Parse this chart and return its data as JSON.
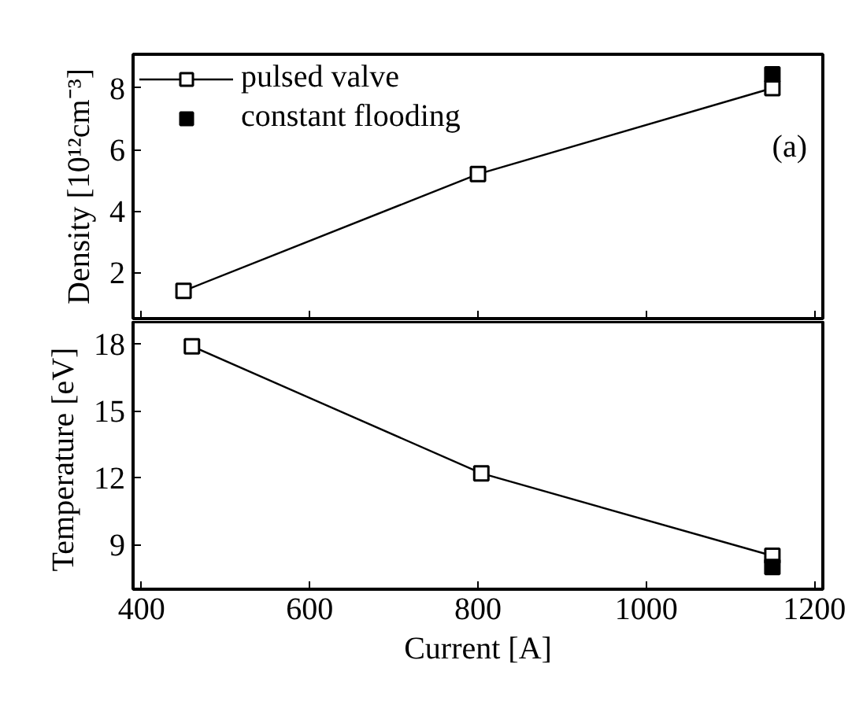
{
  "chart_data": [
    {
      "type": "line",
      "ylabel": "Density [10¹²cm⁻³]",
      "annotations": [
        "(a)"
      ],
      "xlim": [
        390,
        1210
      ],
      "xticks": [
        400,
        600,
        800,
        1000,
        1200
      ],
      "ylim": [
        0.5,
        9.1
      ],
      "yticks": [
        2,
        4,
        6,
        8
      ],
      "tick_labels": "y",
      "legend": "top left",
      "marker": "square",
      "grid": false,
      "series": [
        {
          "name": "pulsed valve",
          "color": "#000000",
          "x": [
            450,
            800,
            1150
          ],
          "values": [
            1.4,
            5.2,
            8.0
          ]
        },
        {
          "name": "constant flooding",
          "type": "scatter",
          "color": "#000000",
          "x": [
            1150
          ],
          "values": [
            8.45
          ]
        }
      ]
    },
    {
      "type": "line",
      "xlabel": "Current [A]",
      "ylabel": "Temperature  [eV]",
      "xlim": [
        390,
        1210
      ],
      "xticks": [
        400,
        600,
        800,
        1000,
        1200
      ],
      "ylim": [
        7,
        19
      ],
      "yticks": [
        9,
        12,
        15,
        18
      ],
      "marker": "square",
      "grid": false,
      "series": [
        {
          "color": "#000000",
          "x": [
            460,
            804,
            1150
          ],
          "values": [
            17.9,
            12.2,
            8.5
          ]
        },
        {
          "type": "scatter",
          "color": "#000000",
          "x": [
            1150
          ],
          "values": [
            8.0
          ]
        }
      ]
    }
  ]
}
